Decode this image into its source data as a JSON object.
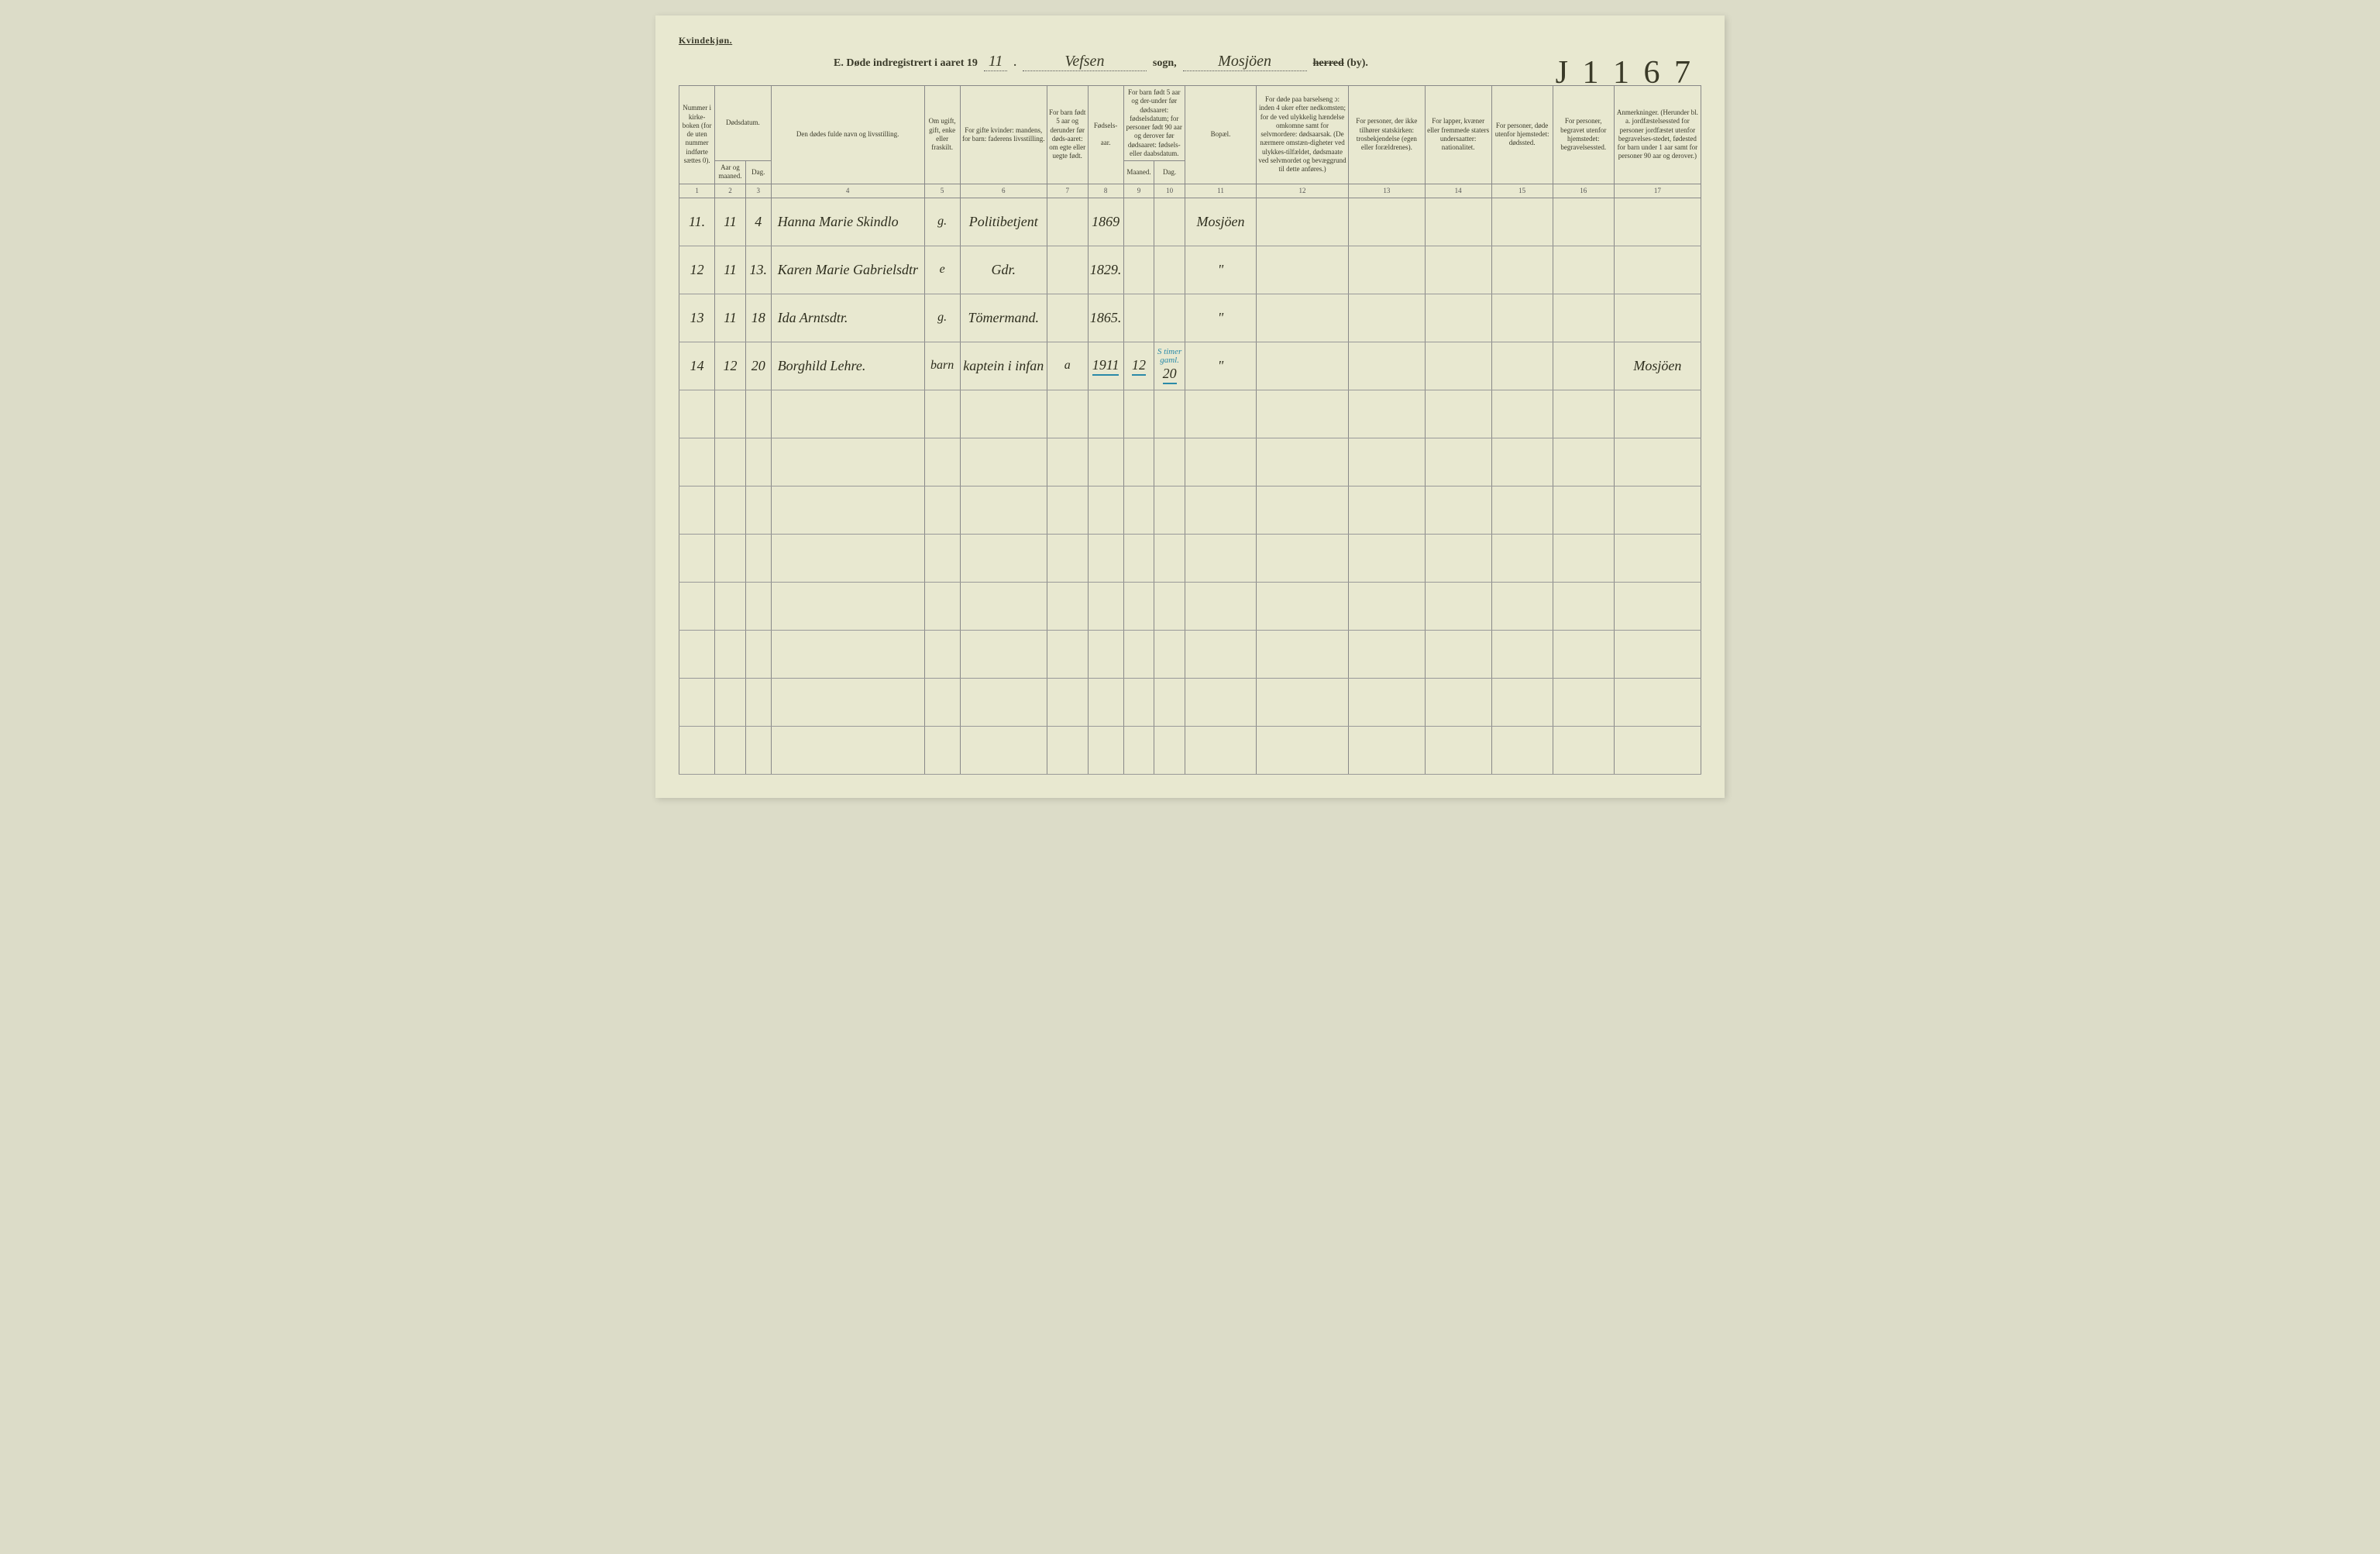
{
  "top_label": "Kvindekjøn.",
  "title": {
    "prefix": "E.  Døde indregistrert i aaret 19",
    "year_written": "11",
    "sogn_label": "sogn,",
    "sogn_value": "Vefsen",
    "herred_label_struck": "herred",
    "herred_suffix": "(by).",
    "herred_value": "Mosjöen"
  },
  "page_stamp": "J 1 1 6 7",
  "headers": {
    "c1": "Nummer i kirke-boken (for de uten nummer indførte sættes 0).",
    "c2_group": "Dødsdatum.",
    "c2": "Aar og maaned.",
    "c3": "Dag.",
    "c4": "Den dødes fulde navn og livsstilling.",
    "c5": "Om ugift, gift, enke eller fraskilt.",
    "c6": "For gifte kvinder: mandens, for barn: faderens livsstilling.",
    "c7": "For barn født 5 aar og derunder før døds-aaret: om egte eller uegte født.",
    "c8_group": "Fødsels-",
    "c8": "aar.",
    "c9_10": "For barn født 5 aar og der-under før dødsaaret: fødselsdatum; for personer født 90 aar og derover før dødsaaret: fødsels- eller daabsdatum.",
    "c9": "Maaned.",
    "c10": "Dag.",
    "c11": "Bopæl.",
    "c12": "For døde paa barselseng ɔ: inden 4 uker efter nedkomsten; for de ved ulykkelig hændelse omkomne samt for selvmordere: dødsaarsak. (De nærmere omstæn-digheter ved ulykkes-tilfældet, dødsmaate ved selvmordet og bevæggrund til dette anføres.)",
    "c13": "For personer, der ikke tilhører statskirken: trosbekjendelse (egen eller forældrenes).",
    "c14": "For lapper, kvæner eller fremmede staters undersaatter: nationalitet.",
    "c15": "For personer, døde utenfor hjemstedet: dødssted.",
    "c16": "For personer, begravet utenfor hjemstedet: begravelsessted.",
    "c17": "Anmerkninger. (Herunder bl. a. jordfæstelsessted for personer jordfæstet utenfor begravelses-stedet, fødested for barn under 1 aar samt for personer 90 aar og derover.)"
  },
  "colnums": [
    "1",
    "2",
    "3",
    "4",
    "5",
    "6",
    "7",
    "8",
    "9",
    "10",
    "11",
    "12",
    "13",
    "14",
    "15",
    "16",
    "17"
  ],
  "rows": [
    {
      "num": "11.",
      "month": "11",
      "day": "4",
      "name": "Hanna Marie Skindlo",
      "status": "g.",
      "relation": "Politibetjent",
      "c7": "",
      "year": "1869",
      "c9": "",
      "c10": "",
      "bopael": "Mosjöen",
      "c12": "",
      "c13": "",
      "c14": "",
      "c15": "",
      "c16": "",
      "c17": ""
    },
    {
      "num": "12",
      "month": "11",
      "day": "13.",
      "name": "Karen Marie Gabrielsdtr",
      "status": "e",
      "relation": "Gdr.",
      "c7": "",
      "year": "1829.",
      "c9": "",
      "c10": "",
      "bopael": "\"",
      "c12": "",
      "c13": "",
      "c14": "",
      "c15": "",
      "c16": "",
      "c17": ""
    },
    {
      "num": "13",
      "month": "11",
      "day": "18",
      "name": "Ida Arntsdtr.",
      "status": "g.",
      "relation": "Tömermand.",
      "c7": "",
      "year": "1865.",
      "c9": "",
      "c10": "",
      "bopael": "\"",
      "c12": "",
      "c13": "",
      "c14": "",
      "c15": "",
      "c16": "",
      "c17": ""
    },
    {
      "num": "14",
      "month": "12",
      "day": "20",
      "name": "Borghild Lehre.",
      "status": "barn",
      "relation": "kaptein i infan",
      "c7": "a",
      "year": "1911",
      "c9": "12",
      "c10": "20",
      "bopael": "\"",
      "c12": "",
      "c13": "",
      "c14": "",
      "c15": "",
      "c16": "",
      "c17": "Mosjöen",
      "annotation": "S timer gaml."
    }
  ],
  "empty_rows": 8,
  "colors": {
    "page_bg": "#e8e8d0",
    "outer_bg": "#dcdcc8",
    "ink": "#3a3a2a",
    "handwriting": "#2e2e1e",
    "rule": "#888888",
    "blue_pencil": "#2a8aa8"
  }
}
